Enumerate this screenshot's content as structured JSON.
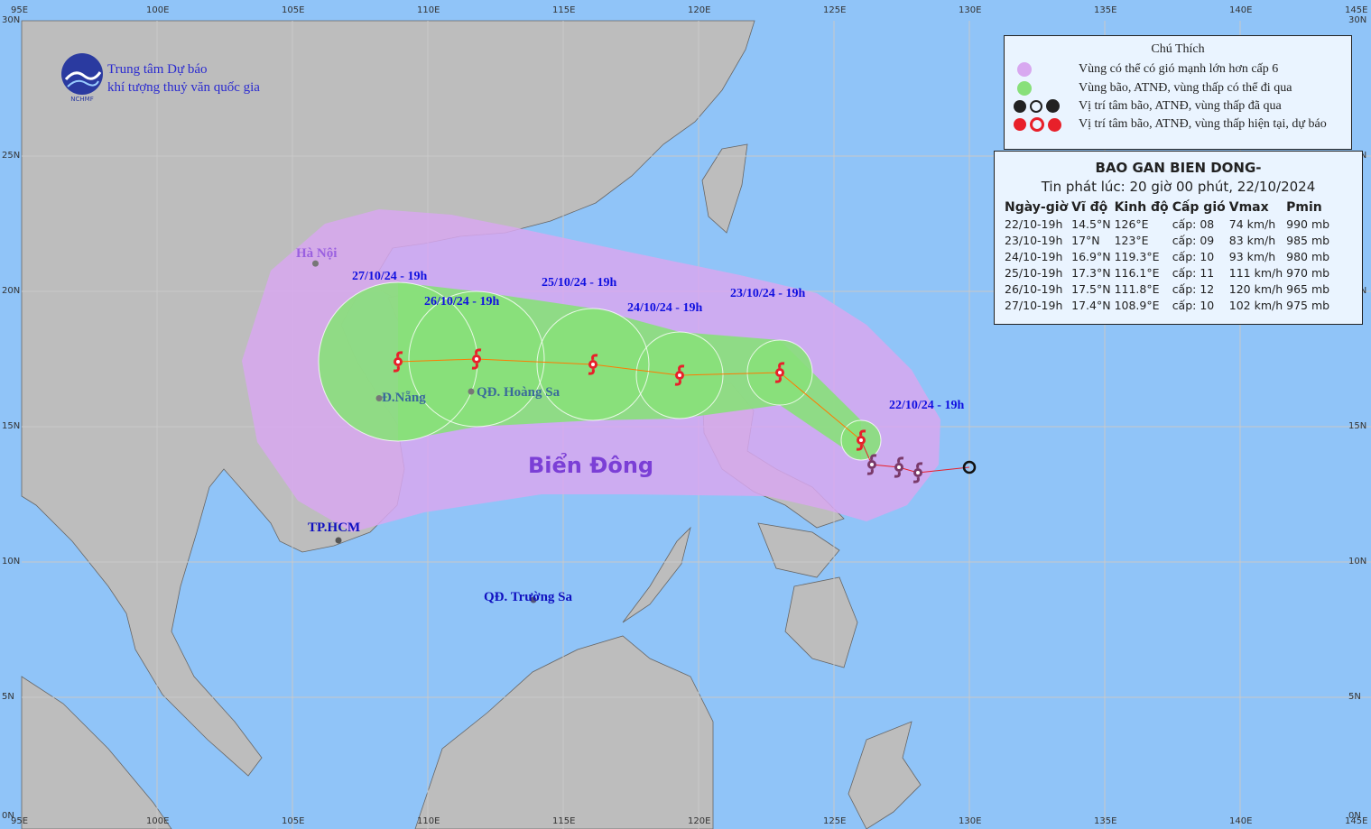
{
  "header": {
    "org_line1": "Trung tâm Dự báo",
    "org_line2": "khí tượng thuỷ văn quốc gia",
    "logo_text": "NCHMF"
  },
  "colors": {
    "ocean": "#90c4f8",
    "land": "#bdbdbd",
    "wind_zone": "#d8a8f0",
    "storm_zone": "#88e07a",
    "forecast_icon": "#e8202a",
    "track_line": "#ff7a00"
  },
  "grid": {
    "lon_ticks": [
      "95E",
      "100E",
      "105E",
      "110E",
      "115E",
      "120E",
      "125E",
      "130E",
      "135E",
      "140E",
      "145E"
    ],
    "lat_ticks": [
      "30N",
      "25N",
      "20N",
      "15N",
      "10N",
      "5N",
      "0N"
    ]
  },
  "places": {
    "hanoi": "Hà Nội",
    "danang": "Đ.Nẵng",
    "hoangsa": "QĐ. Hoàng Sa",
    "hcm": "TP.HCM",
    "truongsa": "QĐ. Trường Sa",
    "sea": "Biển Đông"
  },
  "legend": {
    "title": "Chú Thích",
    "items": [
      {
        "icon": "purple-circle",
        "label": "Vùng có thể có gió mạnh lớn hơn cấp 6"
      },
      {
        "icon": "green-circle",
        "label": "Vùng bão, ATNĐ, vùng thấp có thể đi qua"
      },
      {
        "icon": "past-storm-icons",
        "label": "Vị trí tâm bão, ATNĐ, vùng thấp đã qua"
      },
      {
        "icon": "forecast-storm-icons",
        "label": "Vị trí tâm bão, ATNĐ, vùng thấp hiện tại, dự báo"
      }
    ]
  },
  "info": {
    "title": "BAO GAN BIEN DONG-",
    "issued": "Tin phát lúc: 20 giờ 00 phút, 22/10/2024",
    "columns": [
      "Ngày-giờ",
      "Vĩ độ",
      "Kinh độ",
      "Cấp gió",
      "Vmax",
      "Pmin"
    ],
    "rows": [
      [
        "22/10-19h",
        "14.5°N",
        "126°E",
        "cấp: 08",
        "74 km/h",
        "990 mb"
      ],
      [
        "23/10-19h",
        "17°N",
        "123°E",
        "cấp: 09",
        "83 km/h",
        "985 mb"
      ],
      [
        "24/10-19h",
        "16.9°N",
        "119.3°E",
        "cấp: 10",
        "93 km/h",
        "980 mb"
      ],
      [
        "25/10-19h",
        "17.3°N",
        "116.1°E",
        "cấp: 11",
        "111 km/h",
        "970 mb"
      ],
      [
        "26/10-19h",
        "17.5°N",
        "111.8°E",
        "cấp: 12",
        "120 km/h",
        "965 mb"
      ],
      [
        "27/10-19h",
        "17.4°N",
        "108.9°E",
        "cấp: 10",
        "102 km/h",
        "975 mb"
      ]
    ]
  },
  "track": {
    "past": [
      {
        "lat": 13.5,
        "lon": 130.0
      },
      {
        "lat": 13.3,
        "lon": 128.1
      },
      {
        "lat": 13.5,
        "lon": 127.4
      },
      {
        "lat": 13.6,
        "lon": 126.4
      }
    ],
    "forecast": [
      {
        "label": "22/10/24 - 19h",
        "lat": 14.5,
        "lon": 126.0
      },
      {
        "label": "23/10/24 - 19h",
        "lat": 17.0,
        "lon": 123.0
      },
      {
        "label": "24/10/24 - 19h",
        "lat": 16.9,
        "lon": 119.3
      },
      {
        "label": "25/10/24 - 19h",
        "lat": 17.3,
        "lon": 116.1
      },
      {
        "label": "26/10/24 - 19h",
        "lat": 17.5,
        "lon": 111.8
      },
      {
        "label": "27/10/24 - 19h",
        "lat": 17.4,
        "lon": 108.9
      }
    ]
  }
}
